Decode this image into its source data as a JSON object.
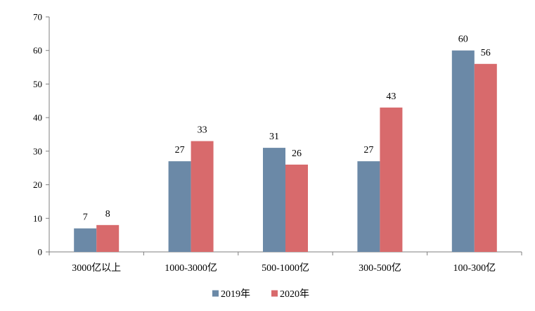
{
  "chart_data": {
    "type": "bar",
    "categories": [
      "3000亿以上",
      "1000-3000亿",
      "500-1000亿",
      "300-500亿",
      "100-300亿"
    ],
    "series": [
      {
        "name": "2019年",
        "values": [
          7,
          27,
          31,
          27,
          60
        ],
        "color": "#6b89a7"
      },
      {
        "name": "2020年",
        "values": [
          8,
          33,
          26,
          43,
          56
        ],
        "color": "#d86a6c"
      }
    ],
    "title": "",
    "xlabel": "",
    "ylabel": "",
    "ylim": [
      0,
      70
    ],
    "yticks": [
      0,
      10,
      20,
      30,
      40,
      50,
      60,
      70
    ],
    "grid": false,
    "legend": "bottom-center"
  }
}
